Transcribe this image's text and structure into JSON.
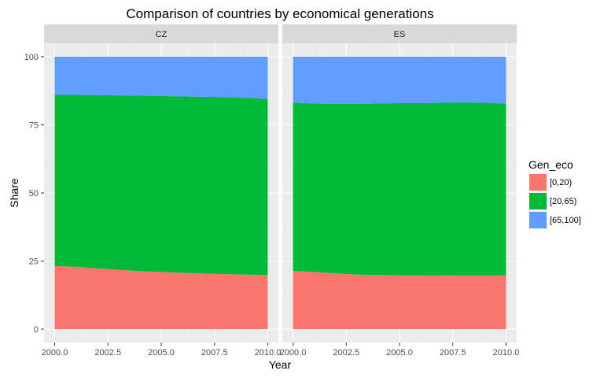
{
  "chart_data": {
    "type": "area",
    "stacked": true,
    "title": "Comparison of countries by economical generations",
    "xlabel": "Year",
    "ylabel": "Share",
    "xlim": [
      2000,
      2010
    ],
    "ylim": [
      0,
      100
    ],
    "x_ticks": [
      "2000.0",
      "2002.5",
      "2005.0",
      "2007.5",
      "2010.0"
    ],
    "y_ticks": [
      "0",
      "25",
      "50",
      "75",
      "100"
    ],
    "legend": {
      "title": "Gen_eco",
      "position": "right",
      "entries": [
        {
          "label": "[0,20)",
          "color": "#F8766D"
        },
        {
          "label": "[20,65)",
          "color": "#00BA38"
        },
        {
          "label": "[65,100]",
          "color": "#619CFF"
        }
      ]
    },
    "x": [
      2000,
      2001,
      2002,
      2003,
      2004,
      2005,
      2006,
      2007,
      2008,
      2009,
      2010
    ],
    "panels": [
      {
        "name": "CZ",
        "series": [
          {
            "name": "[0,20)",
            "values": [
              23.2,
              22.9,
              22.3,
              21.8,
              21.3,
              21.0,
              20.7,
              20.4,
              20.2,
              20.0,
              19.9
            ]
          },
          {
            "name": "[20,65)",
            "values": [
              62.8,
              63.1,
              63.6,
              64.0,
              64.4,
              64.6,
              64.7,
              64.9,
              65.0,
              64.9,
              64.6
            ]
          },
          {
            "name": "[65,100]",
            "values": [
              14.0,
              14.0,
              14.1,
              14.2,
              14.3,
              14.4,
              14.6,
              14.7,
              14.8,
              15.1,
              15.5
            ]
          }
        ]
      },
      {
        "name": "ES",
        "series": [
          {
            "name": "[0,20)",
            "values": [
              21.4,
              21.0,
              20.5,
              20.0,
              19.9,
              19.8,
              19.7,
              19.7,
              19.7,
              19.7,
              19.7
            ]
          },
          {
            "name": "[20,65)",
            "values": [
              61.8,
              61.8,
              62.2,
              62.7,
              62.9,
              63.2,
              63.3,
              63.4,
              63.5,
              63.4,
              63.1
            ]
          },
          {
            "name": "[65,100]",
            "values": [
              16.8,
              17.2,
              17.3,
              17.3,
              17.2,
              17.0,
              17.0,
              16.9,
              16.8,
              16.9,
              17.2
            ]
          }
        ]
      }
    ]
  }
}
